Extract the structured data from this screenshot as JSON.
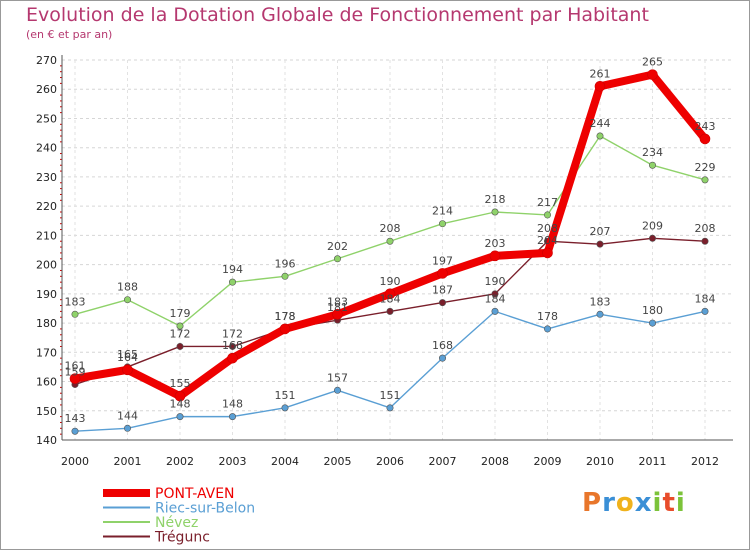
{
  "title": "Evolution de la Dotation Globale de Fonctionnement par Habitant",
  "subtitle": "(en € et par an)",
  "logo": {
    "letters": [
      "P",
      "r",
      "o",
      "x",
      "i",
      "t",
      "i"
    ],
    "colors": [
      "#e8762b",
      "#3a8fd6",
      "#f0b21c",
      "#3a8fd6",
      "#7cc33a",
      "#e84c2b",
      "#7cc33a"
    ]
  },
  "chart_data": {
    "type": "line",
    "x": [
      "2000",
      "2001",
      "2002",
      "2003",
      "2004",
      "2005",
      "2006",
      "2007",
      "2008",
      "2009",
      "2010",
      "2011",
      "2012"
    ],
    "ylim": [
      140,
      270
    ],
    "yticks": [
      140,
      150,
      160,
      170,
      180,
      190,
      200,
      210,
      220,
      230,
      240,
      250,
      260,
      270
    ],
    "grid": true,
    "legend_position": "bottom-left",
    "series": [
      {
        "name": "Trégunc",
        "color": "#7a1f2b",
        "values": [
          159,
          165,
          172,
          172,
          178,
          181,
          184,
          187,
          190,
          208,
          207,
          209,
          208
        ],
        "labels": [
          "159",
          "165",
          "172",
          "172",
          "178",
          "181",
          "184",
          "187",
          "190",
          "208",
          "207",
          "209",
          "208"
        ]
      },
      {
        "name": "Riec-sur-Belon",
        "color": "#5a9fd4",
        "values": [
          143,
          144,
          148,
          148,
          151,
          157,
          151,
          168,
          184,
          178,
          183,
          180,
          184
        ],
        "labels": [
          "143",
          "144",
          "148",
          "148",
          "151",
          "157",
          "151",
          "168",
          "184",
          "178",
          "183",
          "180",
          "184"
        ]
      },
      {
        "name": "Névez",
        "color": "#8fd26a",
        "values": [
          183,
          188,
          179,
          194,
          196,
          202,
          208,
          214,
          218,
          217,
          244,
          234,
          229
        ],
        "labels": [
          "183",
          "188",
          "179",
          "194",
          "196",
          "202",
          "208",
          "214",
          "218",
          "217",
          "244",
          "234",
          "229"
        ]
      },
      {
        "name": "PONT-AVEN",
        "color": "#ee0000",
        "values": [
          161,
          164,
          155,
          168,
          178,
          183,
          190,
          197,
          203,
          204,
          261,
          265,
          243
        ],
        "labels": [
          "161",
          "164",
          "155",
          "168",
          "178",
          "183",
          "190",
          "197",
          "203",
          "204",
          "261",
          "265",
          "243"
        ]
      }
    ],
    "legend": [
      {
        "name": "PONT-AVEN",
        "color": "#ee0000",
        "width": 8
      },
      {
        "name": "Riec-sur-Belon",
        "color": "#5a9fd4",
        "width": 2
      },
      {
        "name": "Névez",
        "color": "#8fd26a",
        "width": 2
      },
      {
        "name": "Trégunc",
        "color": "#7a1f2b",
        "width": 2
      }
    ]
  }
}
